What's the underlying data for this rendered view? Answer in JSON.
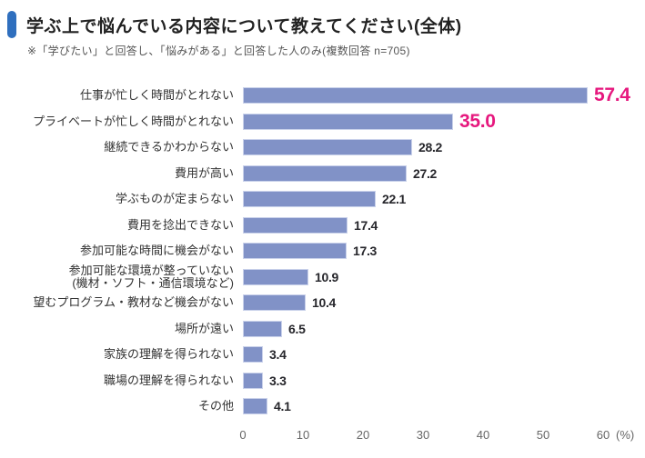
{
  "header": {
    "title": "学ぶ上で悩んでいる内容について教えてください(全体)",
    "subtitle": "※「学びたい」と回答し、「悩みがある」と回答した人のみ(複数回答 n=705)",
    "accent_color": "#2f6fbe"
  },
  "chart_data": {
    "type": "bar",
    "orientation": "horizontal",
    "title": "学ぶ上で悩んでいる内容について教えてください(全体)",
    "note": "※「学びたい」と回答し、「悩みがある」と回答した人のみ(複数回答 n=705)",
    "n": 705,
    "categories": [
      "仕事が忙しく時間がとれない",
      "プライベートが忙しく時間がとれない",
      "継続できるかわからない",
      "費用が高い",
      "学ぶものが定まらない",
      "費用を捻出できない",
      "参加可能な時間に機会がない",
      "参加可能な環境が整っていない\n(機材・ソフト・通信環境など)",
      "望むプログラム・教材など機会がない",
      "場所が遠い",
      "家族の理解を得られない",
      "職場の理解を得られない",
      "その他"
    ],
    "values": [
      57.4,
      35.0,
      28.2,
      27.2,
      22.1,
      17.4,
      17.3,
      10.9,
      10.4,
      6.5,
      3.4,
      3.3,
      4.1
    ],
    "value_labels": [
      "57.4",
      "35.0",
      "28.2",
      "27.2",
      "22.1",
      "17.4",
      "17.3",
      "10.9",
      "10.4",
      "6.5",
      "3.4",
      "3.3",
      "4.1"
    ],
    "highlighted_indices": [
      0,
      1
    ],
    "xlim": [
      0,
      60
    ],
    "x_ticks": [
      "0",
      "10",
      "20",
      "30",
      "40",
      "50",
      "60"
    ],
    "x_tick_values": [
      0,
      10,
      20,
      30,
      40,
      50,
      60
    ],
    "x_unit": "(%)",
    "grid": false,
    "legend": false,
    "bar_color": "#8192c7",
    "bar_border_color": "#c9d1ea",
    "value_color": "#26262b",
    "highlight_color": "#e6187e"
  }
}
